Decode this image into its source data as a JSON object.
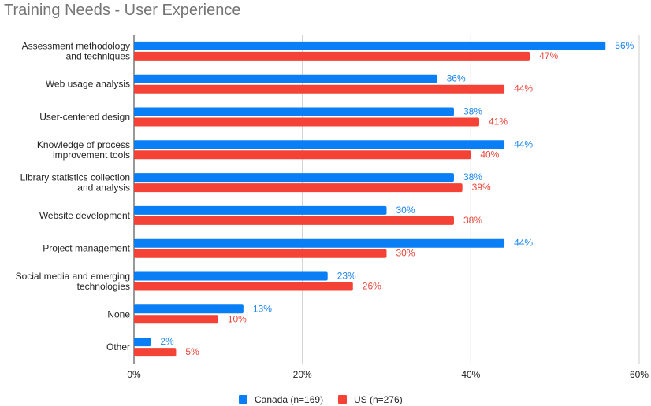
{
  "chart_data": {
    "type": "bar",
    "orientation": "horizontal",
    "title": "Training Needs - User Experience",
    "xlabel": "",
    "ylabel": "",
    "xlim": [
      0,
      60
    ],
    "x_ticks": [
      "0%",
      "20%",
      "40%",
      "60%"
    ],
    "x_tick_values": [
      0,
      20,
      40,
      60
    ],
    "grid": true,
    "legend_position": "bottom",
    "categories": [
      [
        "Assessment methodology",
        "and techniques"
      ],
      [
        "Web usage analysis"
      ],
      [
        "User-centered design"
      ],
      [
        "Knowledge of process",
        "improvement tools"
      ],
      [
        "Library statistics collection",
        "and analysis"
      ],
      [
        "Website development"
      ],
      [
        "Project management"
      ],
      [
        "Social media and emerging",
        "technologies"
      ],
      [
        "None"
      ],
      [
        "Other"
      ]
    ],
    "series": [
      {
        "name": "Canada (n=169)",
        "color": "#0a7ff5",
        "label_color": "#1a85f0",
        "values": [
          56,
          36,
          38,
          44,
          38,
          30,
          44,
          23,
          13,
          2
        ],
        "labels": [
          "56%",
          "36%",
          "38%",
          "44%",
          "38%",
          "30%",
          "44%",
          "23%",
          "13%",
          "2%"
        ]
      },
      {
        "name": "US (n=276)",
        "color": "#f44336",
        "label_color": "#e8473b",
        "values": [
          47,
          44,
          41,
          40,
          39,
          38,
          30,
          26,
          10,
          5
        ],
        "labels": [
          "47%",
          "44%",
          "41%",
          "40%",
          "39%",
          "38%",
          "30%",
          "26%",
          "10%",
          "5%"
        ]
      }
    ]
  }
}
